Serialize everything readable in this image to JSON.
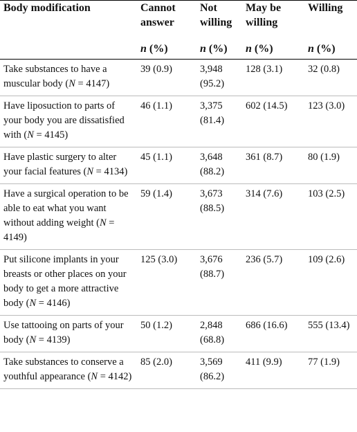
{
  "table": {
    "header": [
      {
        "title": "Body modification"
      },
      {
        "title": "Cannot answer",
        "unit_symbol": "n",
        "unit_rest": " (%)"
      },
      {
        "title": "Not willing",
        "unit_symbol": "n",
        "unit_rest": " (%)"
      },
      {
        "title": "May be willing",
        "unit_symbol": "n",
        "unit_rest": " (%)"
      },
      {
        "title": "Willing",
        "unit_symbol": "n",
        "unit_rest": " (%)"
      }
    ],
    "rows": [
      {
        "label": {
          "text": "Take substances to have a muscular body (",
          "n_symbol": "N",
          "n_rest": " = 4147)"
        },
        "cells": [
          "39 (0.9)",
          "3,948 (95.2)",
          "128 (3.1)",
          "32 (0.8)"
        ]
      },
      {
        "label": {
          "text": "Have liposuction to parts of your body you are dissatisfied with (",
          "n_symbol": "N",
          "n_rest": " = 4145)"
        },
        "cells": [
          "46 (1.1)",
          "3,375 (81.4)",
          "602 (14.5)",
          "123 (3.0)"
        ]
      },
      {
        "label": {
          "text": "Have plastic surgery to alter your facial features (",
          "n_symbol": "N",
          "n_rest": " = 4134)"
        },
        "cells": [
          "45 (1.1)",
          "3,648 (88.2)",
          "361 (8.7)",
          "80 (1.9)"
        ]
      },
      {
        "label": {
          "text": "Have a surgical operation to be able to eat what you want without adding weight (",
          "n_symbol": "N",
          "n_rest": " = 4149)"
        },
        "cells": [
          "59 (1.4)",
          "3,673 (88.5)",
          "314 (7.6)",
          "103 (2.5)"
        ]
      },
      {
        "label": {
          "text": "Put silicone implants in your breasts or other places on your body to get a more attractive body (",
          "n_symbol": "N",
          "n_rest": " = 4146)"
        },
        "cells": [
          "125 (3.0)",
          "3,676 (88.7)",
          "236 (5.7)",
          "109 (2.6)"
        ]
      },
      {
        "label": {
          "text": "Use tattooing on parts of your body (",
          "n_symbol": "N",
          "n_rest": " = 4139)"
        },
        "cells": [
          "50 (1.2)",
          "2,848 (68.8)",
          "686 (16.6)",
          "555 (13.4)"
        ]
      },
      {
        "label": {
          "text": "Take substances to conserve a youthful appearance (",
          "n_symbol": "N",
          "n_rest": " = 4142)"
        },
        "cells": [
          "85 (2.0)",
          "3,569 (86.2)",
          "411 (9.9)",
          "77 (1.9)"
        ]
      }
    ]
  }
}
